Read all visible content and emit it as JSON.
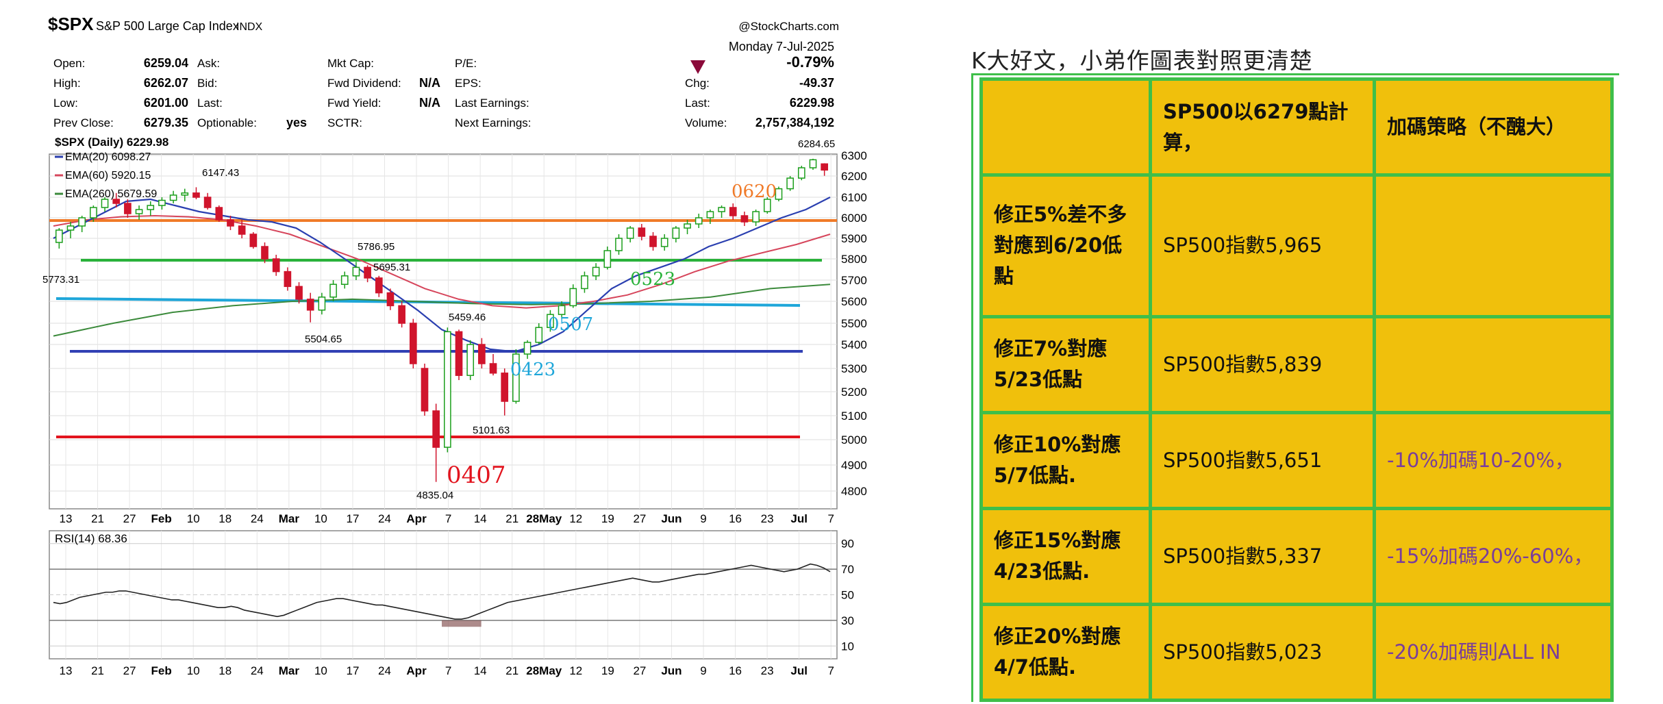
{
  "chart_header": {
    "symbol": "$SPX",
    "name": "S&P 500 Large Cap Index",
    "exchange": "INDX",
    "brand": "@StockCharts.com",
    "date": "Monday 7-Jul-2025",
    "fields_left": [
      {
        "label": "Open:",
        "value": "6259.04"
      },
      {
        "label": "High:",
        "value": "6262.07"
      },
      {
        "label": "Low:",
        "value": "6201.00"
      },
      {
        "label": "Prev Close:",
        "value": "6279.35"
      }
    ],
    "fields_mid1": [
      "Ask:",
      "Bid:",
      "Last:",
      "Optionable:"
    ],
    "optionable_value": "yes",
    "fields_mid2": [
      {
        "label": "Mkt Cap:",
        "value": ""
      },
      {
        "label": "Fwd Dividend:",
        "value": "N/A"
      },
      {
        "label": "Fwd Yield:",
        "value": "N/A"
      },
      {
        "label": "SCTR:",
        "value": ""
      }
    ],
    "fields_mid3": [
      "P/E:",
      "EPS:",
      "Last Earnings:",
      "Next Earnings:"
    ],
    "fields_right": [
      {
        "label": "",
        "value": "-0.79%"
      },
      {
        "label": "Chg:",
        "value": "-49.37"
      },
      {
        "label": "Last:",
        "value": "6229.98"
      },
      {
        "label": "Volume:",
        "value": "2,757,384,192"
      }
    ]
  },
  "legend": {
    "main": "$SPX (Daily) 6229.98",
    "ema20": "EMA(20) 6098.27",
    "ema60": "EMA(60) 5920.15",
    "ema260": "EMA(260) 5679.59"
  },
  "colors": {
    "up": "#1b9e1b",
    "down": "#d0142c",
    "ema20": "#2a3fb0",
    "ema60": "#d6455b",
    "ema260": "#3b8a3b",
    "orange": "#f07a28",
    "green": "#29b23a",
    "cyan": "#1ea6d9",
    "blue": "#3140b4",
    "red": "#e2141e",
    "pct_down": "#8b0a3a"
  },
  "chart_data": {
    "type": "candlestick",
    "y_ticks": [
      6300,
      6200,
      6100,
      6000,
      5900,
      5800,
      5700,
      5600,
      5500,
      5400,
      5300,
      5200,
      5100,
      5000,
      4900,
      4800
    ],
    "x_ticks": [
      "13",
      "21",
      "27",
      "Feb",
      "10",
      "18",
      "24",
      "Mar",
      "10",
      "17",
      "24",
      "Apr",
      "7",
      "14",
      "21",
      "28May",
      "12",
      "19",
      "27",
      "Jun",
      "9",
      "16",
      "23",
      "Jul",
      "7"
    ],
    "candles": [
      [
        5880,
        5950,
        5850,
        5940
      ],
      [
        5940,
        5980,
        5900,
        5960
      ],
      [
        5960,
        6010,
        5930,
        6000
      ],
      [
        6000,
        6060,
        5980,
        6050
      ],
      [
        6050,
        6100,
        6030,
        6090
      ],
      [
        6090,
        6120,
        6050,
        6070
      ],
      [
        6070,
        6090,
        6000,
        6020
      ],
      [
        6020,
        6060,
        5990,
        6040
      ],
      [
        6040,
        6080,
        6010,
        6060
      ],
      [
        6060,
        6100,
        6040,
        6085
      ],
      [
        6085,
        6130,
        6070,
        6110
      ],
      [
        6110,
        6140,
        6080,
        6120
      ],
      [
        6120,
        6147,
        6090,
        6100
      ],
      [
        6100,
        6120,
        6040,
        6050
      ],
      [
        6050,
        6060,
        5980,
        5990
      ],
      [
        5990,
        6010,
        5940,
        5960
      ],
      [
        5960,
        5990,
        5900,
        5920
      ],
      [
        5920,
        5930,
        5850,
        5860
      ],
      [
        5860,
        5880,
        5780,
        5800
      ],
      [
        5800,
        5820,
        5720,
        5740
      ],
      [
        5740,
        5760,
        5650,
        5670
      ],
      [
        5670,
        5690,
        5590,
        5610
      ],
      [
        5610,
        5640,
        5504,
        5560
      ],
      [
        5560,
        5640,
        5540,
        5620
      ],
      [
        5620,
        5700,
        5600,
        5680
      ],
      [
        5680,
        5740,
        5660,
        5720
      ],
      [
        5720,
        5786,
        5700,
        5760
      ],
      [
        5760,
        5770,
        5690,
        5710
      ],
      [
        5710,
        5720,
        5620,
        5640
      ],
      [
        5640,
        5660,
        5560,
        5580
      ],
      [
        5580,
        5600,
        5480,
        5500
      ],
      [
        5500,
        5520,
        5300,
        5320
      ],
      [
        5300,
        5320,
        5100,
        5120
      ],
      [
        5120,
        5150,
        4835,
        4970
      ],
      [
        4970,
        5480,
        4950,
        5460
      ],
      [
        5460,
        5470,
        5250,
        5270
      ],
      [
        5270,
        5420,
        5250,
        5400
      ],
      [
        5400,
        5430,
        5300,
        5320
      ],
      [
        5320,
        5360,
        5270,
        5280
      ],
      [
        5280,
        5300,
        5101,
        5160
      ],
      [
        5160,
        5380,
        5150,
        5360
      ],
      [
        5360,
        5420,
        5340,
        5410
      ],
      [
        5410,
        5500,
        5400,
        5480
      ],
      [
        5480,
        5560,
        5460,
        5540
      ],
      [
        5540,
        5600,
        5520,
        5580
      ],
      [
        5580,
        5680,
        5570,
        5660
      ],
      [
        5660,
        5740,
        5640,
        5720
      ],
      [
        5720,
        5780,
        5700,
        5760
      ],
      [
        5760,
        5860,
        5750,
        5840
      ],
      [
        5840,
        5920,
        5820,
        5900
      ],
      [
        5900,
        5960,
        5880,
        5950
      ],
      [
        5950,
        5970,
        5890,
        5910
      ],
      [
        5910,
        5930,
        5840,
        5860
      ],
      [
        5860,
        5920,
        5840,
        5900
      ],
      [
        5900,
        5960,
        5880,
        5950
      ],
      [
        5950,
        5990,
        5920,
        5970
      ],
      [
        5970,
        6020,
        5950,
        6000
      ],
      [
        6000,
        6040,
        5970,
        6030
      ],
      [
        6030,
        6060,
        6000,
        6050
      ],
      [
        6050,
        6070,
        5990,
        6010
      ],
      [
        6010,
        6030,
        5960,
        5980
      ],
      [
        5980,
        6040,
        5960,
        6030
      ],
      [
        6030,
        6100,
        6020,
        6090
      ],
      [
        6090,
        6150,
        6080,
        6140
      ],
      [
        6140,
        6200,
        6130,
        6190
      ],
      [
        6190,
        6250,
        6180,
        6240
      ],
      [
        6240,
        6284,
        6230,
        6279
      ],
      [
        6259,
        6262,
        6201,
        6229
      ]
    ],
    "ema20": [
      5900,
      5960,
      6020,
      6080,
      6090,
      6060,
      6030,
      6010,
      5990,
      5980,
      5950,
      5880,
      5800,
      5720,
      5640,
      5560,
      5470,
      5420,
      5380,
      5370,
      5400,
      5460,
      5560,
      5660,
      5720,
      5760,
      5800,
      5860,
      5900,
      5950,
      6000,
      6040,
      6100
    ],
    "ema60": [
      5960,
      5990,
      6005,
      6010,
      6005,
      5990,
      5960,
      5920,
      5860,
      5800,
      5730,
      5660,
      5610,
      5580,
      5570,
      5580,
      5600,
      5630,
      5680,
      5740,
      5790,
      5830,
      5870,
      5920
    ],
    "ema260": [
      5440,
      5500,
      5550,
      5580,
      5600,
      5610,
      5600,
      5590,
      5585,
      5590,
      5600,
      5620,
      5660,
      5680
    ],
    "price_labels": [
      "6284.65",
      "6147.43",
      "5773.31",
      "5786.95",
      "5695.31",
      "5504.65",
      "5459.46",
      "5101.63",
      "4835.04"
    ],
    "date_annotations": [
      "0620",
      "0523",
      "0507",
      "0423",
      "0407"
    ],
    "rsi_label": "RSI(14) 68.36",
    "rsi_ticks": [
      90,
      70,
      50,
      30,
      10
    ],
    "rsi_values": [
      44,
      43,
      44,
      46,
      48,
      49,
      50,
      51,
      52,
      52,
      53,
      53,
      52,
      51,
      50,
      49,
      48,
      47,
      46,
      46,
      45,
      44,
      43,
      42,
      41,
      40,
      40,
      41,
      40,
      38,
      37,
      36,
      35,
      34,
      33,
      34,
      36,
      38,
      40,
      42,
      44,
      45,
      46,
      47,
      47,
      46,
      45,
      44,
      43,
      42,
      42,
      41,
      40,
      39,
      38,
      37,
      36,
      35,
      34,
      33,
      32,
      31,
      31,
      32,
      34,
      36,
      38,
      40,
      42,
      44,
      45,
      46,
      47,
      48,
      49,
      50,
      51,
      52,
      53,
      54,
      55,
      56,
      57,
      58,
      59,
      60,
      61,
      62,
      63,
      62,
      61,
      60,
      60,
      61,
      62,
      63,
      64,
      65,
      66,
      66,
      67,
      68,
      69,
      70,
      71,
      72,
      73,
      72,
      71,
      70,
      69,
      68,
      69,
      70,
      72,
      74,
      73,
      71,
      68
    ]
  },
  "right_panel": {
    "title": "K大好文，小弟作圖表對照更清楚",
    "rows": [
      [
        "",
        "SP500以6279點計算，",
        "加碼策略（不醜大）"
      ],
      [
        "修正5%差不多對應到6/20低點",
        "SP500指數5,965",
        ""
      ],
      [
        "修正7%對應5/23低點",
        "SP500指數5,839",
        ""
      ],
      [
        "修正10%對應5/7低點.",
        "SP500指數5,651",
        "-10%加碼10-20%，"
      ],
      [
        "修正15%對應4/23低點.",
        "SP500指數5,337",
        "-15%加碼20%-60%，"
      ],
      [
        "修正20%對應4/7低點.",
        "SP500指數5,023",
        "-20%加碼則ALL IN"
      ]
    ]
  }
}
